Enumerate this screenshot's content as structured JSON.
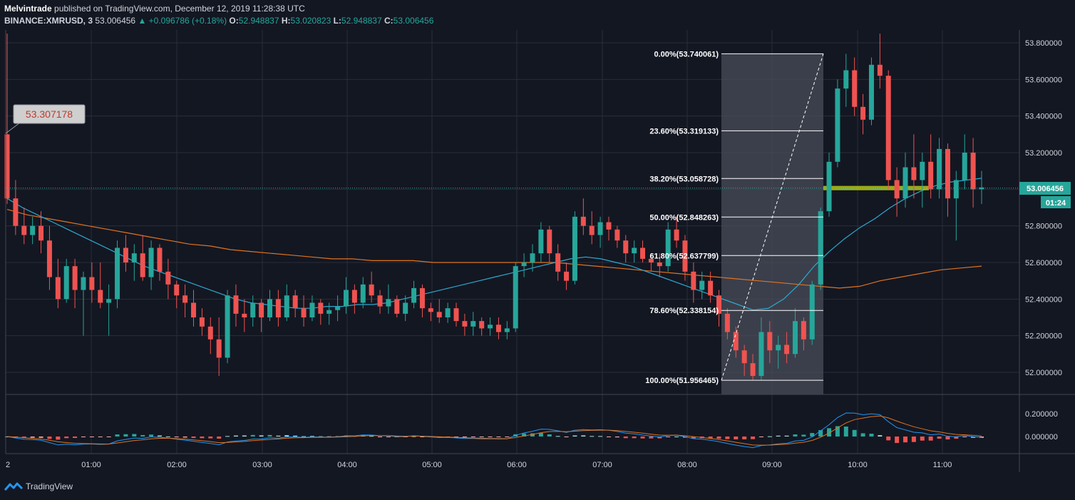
{
  "header": {
    "author": "Melvintrade",
    "published_text": "published on TradingView.com, December 12, 2019 11:28:38 UTC",
    "symbol": "BINANCE:XMRUSD, 3",
    "last": "53.006456",
    "change": "▲ +0.096786 (+0.18%)",
    "open_label": "O:",
    "open": "52.948837",
    "high_label": "H:",
    "high": "53.020823",
    "low_label": "L:",
    "low": "52.948837",
    "close_label": "C:",
    "close": "53.006456"
  },
  "footer": {
    "brand": "TradingView",
    "logo_icon": "tradingview-logo-icon"
  },
  "colors": {
    "background": "#131722",
    "up": "#26a69a",
    "down": "#ef5350",
    "ma_fast": "#2ea8cf",
    "ma_slow": "#e0721e",
    "fib_zone": "#4a4e5a",
    "highlight": "#b5c81a"
  },
  "callout": {
    "value": "53.307178"
  },
  "price_label": {
    "value": "53.006456",
    "countdown": "01:24"
  },
  "chart_data": {
    "type": "candlestick",
    "title": "",
    "price_axis": {
      "ticks": [
        "53.800000",
        "53.600000",
        "53.400000",
        "53.200000",
        "53.000000",
        "52.800000",
        "52.600000",
        "52.400000",
        "52.200000",
        "52.000000"
      ],
      "range": [
        51.88,
        53.89
      ]
    },
    "time_axis": {
      "ticks": [
        "2",
        "01:00",
        "02:00",
        "03:00",
        "04:00",
        "05:00",
        "06:00",
        "07:00",
        "08:00",
        "09:00",
        "10:00",
        "11:00"
      ]
    },
    "macd_axis": {
      "ticks": [
        "0.200000",
        "0.000000"
      ]
    },
    "fibonacci": {
      "levels": [
        {
          "label": "0.00%(53.740061)",
          "price": 53.740061
        },
        {
          "label": "23.60%(53.319133)",
          "price": 53.319133
        },
        {
          "label": "38.20%(53.058728)",
          "price": 53.058728
        },
        {
          "label": "50.00%(52.848263)",
          "price": 52.848263
        },
        {
          "label": "61.80%(52.637799)",
          "price": 52.637799
        },
        {
          "label": "78.60%(52.338154)",
          "price": 52.338154
        },
        {
          "label": "100.00%(51.956465)",
          "price": 51.956465
        }
      ]
    },
    "ohlc": [
      [
        53.3,
        53.85,
        52.92,
        52.95
      ],
      [
        52.95,
        53.05,
        52.75,
        52.8
      ],
      [
        52.8,
        52.9,
        52.7,
        52.75
      ],
      [
        52.75,
        52.85,
        52.7,
        52.8
      ],
      [
        52.8,
        52.88,
        52.65,
        52.72
      ],
      [
        52.72,
        52.8,
        52.45,
        52.52
      ],
      [
        52.52,
        52.62,
        52.35,
        52.4
      ],
      [
        52.4,
        52.62,
        52.38,
        52.58
      ],
      [
        52.58,
        52.62,
        52.35,
        52.45
      ],
      [
        52.45,
        52.55,
        52.2,
        52.52
      ],
      [
        52.52,
        52.6,
        52.38,
        52.45
      ],
      [
        52.45,
        52.6,
        52.35,
        52.38
      ],
      [
        52.38,
        52.48,
        52.2,
        52.4
      ],
      [
        52.4,
        52.72,
        52.35,
        52.68
      ],
      [
        52.68,
        52.75,
        52.55,
        52.6
      ],
      [
        52.6,
        52.7,
        52.5,
        52.65
      ],
      [
        52.65,
        52.75,
        52.5,
        52.52
      ],
      [
        52.52,
        52.72,
        52.45,
        52.68
      ],
      [
        52.68,
        52.7,
        52.5,
        52.55
      ],
      [
        52.55,
        52.62,
        52.4,
        52.48
      ],
      [
        52.48,
        52.5,
        52.35,
        52.42
      ],
      [
        52.42,
        52.48,
        52.3,
        52.38
      ],
      [
        52.38,
        52.45,
        52.25,
        52.3
      ],
      [
        52.3,
        52.35,
        52.2,
        52.25
      ],
      [
        52.25,
        52.3,
        52.1,
        52.18
      ],
      [
        52.18,
        52.3,
        51.98,
        52.08
      ],
      [
        52.08,
        52.45,
        52.05,
        52.42
      ],
      [
        52.42,
        52.48,
        52.25,
        52.32
      ],
      [
        52.32,
        52.4,
        52.22,
        52.3
      ],
      [
        52.3,
        52.42,
        52.25,
        52.38
      ],
      [
        52.38,
        52.4,
        52.22,
        52.3
      ],
      [
        52.3,
        52.45,
        52.28,
        52.4
      ],
      [
        52.4,
        52.45,
        52.25,
        52.3
      ],
      [
        52.3,
        52.48,
        52.28,
        52.42
      ],
      [
        52.42,
        52.45,
        52.3,
        52.35
      ],
      [
        52.35,
        52.42,
        52.25,
        52.3
      ],
      [
        52.3,
        52.42,
        52.28,
        52.38
      ],
      [
        52.38,
        52.4,
        52.26,
        52.32
      ],
      [
        52.32,
        52.38,
        52.26,
        52.34
      ],
      [
        52.34,
        52.42,
        52.28,
        52.36
      ],
      [
        52.36,
        52.52,
        52.32,
        52.45
      ],
      [
        52.45,
        52.48,
        52.32,
        52.38
      ],
      [
        52.38,
        52.52,
        52.35,
        52.48
      ],
      [
        52.48,
        52.55,
        52.38,
        52.42
      ],
      [
        52.42,
        52.45,
        52.32,
        52.36
      ],
      [
        52.36,
        52.48,
        52.32,
        52.4
      ],
      [
        52.4,
        52.42,
        52.3,
        52.32
      ],
      [
        52.32,
        52.42,
        52.28,
        52.38
      ],
      [
        52.38,
        52.5,
        52.35,
        52.46
      ],
      [
        52.46,
        52.48,
        52.3,
        52.35
      ],
      [
        52.35,
        52.38,
        52.28,
        52.33
      ],
      [
        52.33,
        52.4,
        52.27,
        52.3
      ],
      [
        52.3,
        52.38,
        52.27,
        52.35
      ],
      [
        52.35,
        52.38,
        52.25,
        52.28
      ],
      [
        52.28,
        52.32,
        52.2,
        52.25
      ],
      [
        52.25,
        52.33,
        52.2,
        52.28
      ],
      [
        52.28,
        52.3,
        52.2,
        52.24
      ],
      [
        52.24,
        52.3,
        52.2,
        52.26
      ],
      [
        52.26,
        52.3,
        52.18,
        52.22
      ],
      [
        52.22,
        52.28,
        52.18,
        52.24
      ],
      [
        52.24,
        52.6,
        52.22,
        52.58
      ],
      [
        52.58,
        52.65,
        52.52,
        52.6
      ],
      [
        52.6,
        52.7,
        52.55,
        52.65
      ],
      [
        52.65,
        52.82,
        52.6,
        52.78
      ],
      [
        52.78,
        52.8,
        52.6,
        52.65
      ],
      [
        52.65,
        52.7,
        52.5,
        52.55
      ],
      [
        52.55,
        52.6,
        52.45,
        52.5
      ],
      [
        52.5,
        52.88,
        52.48,
        52.85
      ],
      [
        52.85,
        52.95,
        52.75,
        52.8
      ],
      [
        52.8,
        52.88,
        52.7,
        52.75
      ],
      [
        52.75,
        52.85,
        52.68,
        52.82
      ],
      [
        52.82,
        52.85,
        52.72,
        52.78
      ],
      [
        52.78,
        52.8,
        52.68,
        52.72
      ],
      [
        52.72,
        52.75,
        52.6,
        52.65
      ],
      [
        52.65,
        52.72,
        52.6,
        52.68
      ],
      [
        52.68,
        52.72,
        52.6,
        52.62
      ],
      [
        52.62,
        52.65,
        52.55,
        52.6
      ],
      [
        52.6,
        52.65,
        52.52,
        52.58
      ],
      [
        52.58,
        52.82,
        52.55,
        52.78
      ],
      [
        52.78,
        52.85,
        52.68,
        52.72
      ],
      [
        52.72,
        52.75,
        52.5,
        52.55
      ],
      [
        52.55,
        52.6,
        52.38,
        52.45
      ],
      [
        52.45,
        52.55,
        52.4,
        52.5
      ],
      [
        52.5,
        52.55,
        52.38,
        52.42
      ],
      [
        52.42,
        52.45,
        52.25,
        52.32
      ],
      [
        52.32,
        52.35,
        52.18,
        52.22
      ],
      [
        52.22,
        52.25,
        52.08,
        52.12
      ],
      [
        52.12,
        52.15,
        51.98,
        52.05
      ],
      [
        52.05,
        52.1,
        51.96,
        51.98
      ],
      [
        51.98,
        52.3,
        51.96,
        52.22
      ],
      [
        52.22,
        52.28,
        52.05,
        52.12
      ],
      [
        52.12,
        52.2,
        52.02,
        52.15
      ],
      [
        52.15,
        52.22,
        52.05,
        52.1
      ],
      [
        52.1,
        52.35,
        52.08,
        52.28
      ],
      [
        52.28,
        52.3,
        52.12,
        52.18
      ],
      [
        52.18,
        52.5,
        52.15,
        52.48
      ],
      [
        52.48,
        52.9,
        52.45,
        52.88
      ],
      [
        52.88,
        53.2,
        52.85,
        53.15
      ],
      [
        53.15,
        53.6,
        53.12,
        53.55
      ],
      [
        53.55,
        53.74,
        53.45,
        53.65
      ],
      [
        53.65,
        53.72,
        53.4,
        53.45
      ],
      [
        53.45,
        53.52,
        53.3,
        53.38
      ],
      [
        53.38,
        53.72,
        53.35,
        53.68
      ],
      [
        53.68,
        53.85,
        53.55,
        53.62
      ],
      [
        53.62,
        53.65,
        53.0,
        53.05
      ],
      [
        53.05,
        53.12,
        52.85,
        52.95
      ],
      [
        52.95,
        53.2,
        52.9,
        53.12
      ],
      [
        53.12,
        53.3,
        52.95,
        53.05
      ],
      [
        53.05,
        53.2,
        52.9,
        53.15
      ],
      [
        53.15,
        53.3,
        52.95,
        53.0
      ],
      [
        53.0,
        53.28,
        52.95,
        53.22
      ],
      [
        53.22,
        53.25,
        52.85,
        52.95
      ],
      [
        52.95,
        53.1,
        52.72,
        53.05
      ],
      [
        53.05,
        53.3,
        53.0,
        53.2
      ],
      [
        53.2,
        53.28,
        52.9,
        53.0
      ],
      [
        53.0,
        53.1,
        52.92,
        53.01
      ]
    ],
    "ma_fast": [
      52.95,
      52.9,
      52.86,
      52.82,
      52.78,
      52.74,
      52.7,
      52.66,
      52.62,
      52.58,
      52.55,
      52.52,
      52.49,
      52.46,
      52.43,
      52.4,
      52.38,
      52.37,
      52.36,
      52.35,
      52.35,
      52.36,
      52.36,
      52.37,
      52.37,
      52.38,
      52.4,
      52.42,
      52.44,
      52.46,
      52.48,
      52.5,
      52.52,
      52.54,
      52.56,
      52.58,
      52.6,
      52.62,
      52.63,
      52.62,
      52.6,
      52.58,
      52.55,
      52.52,
      52.49,
      52.46,
      52.43,
      52.4,
      52.37,
      52.34,
      52.35,
      52.4,
      52.48,
      52.58,
      52.66,
      52.73,
      52.79,
      52.84,
      52.9,
      52.95,
      52.99,
      53.02,
      53.04,
      53.05,
      53.06
    ],
    "ma_slow": [
      52.89,
      52.86,
      52.84,
      52.82,
      52.8,
      52.78,
      52.76,
      52.74,
      52.72,
      52.7,
      52.69,
      52.67,
      52.66,
      52.65,
      52.64,
      52.63,
      52.62,
      52.62,
      52.61,
      52.61,
      52.61,
      52.6,
      52.6,
      52.6,
      52.6,
      52.6,
      52.6,
      52.6,
      52.59,
      52.58,
      52.57,
      52.56,
      52.55,
      52.54,
      52.53,
      52.52,
      52.51,
      52.5,
      52.49,
      52.48,
      52.47,
      52.46,
      52.47,
      52.5,
      52.52,
      52.54,
      52.56,
      52.57,
      52.58
    ]
  }
}
